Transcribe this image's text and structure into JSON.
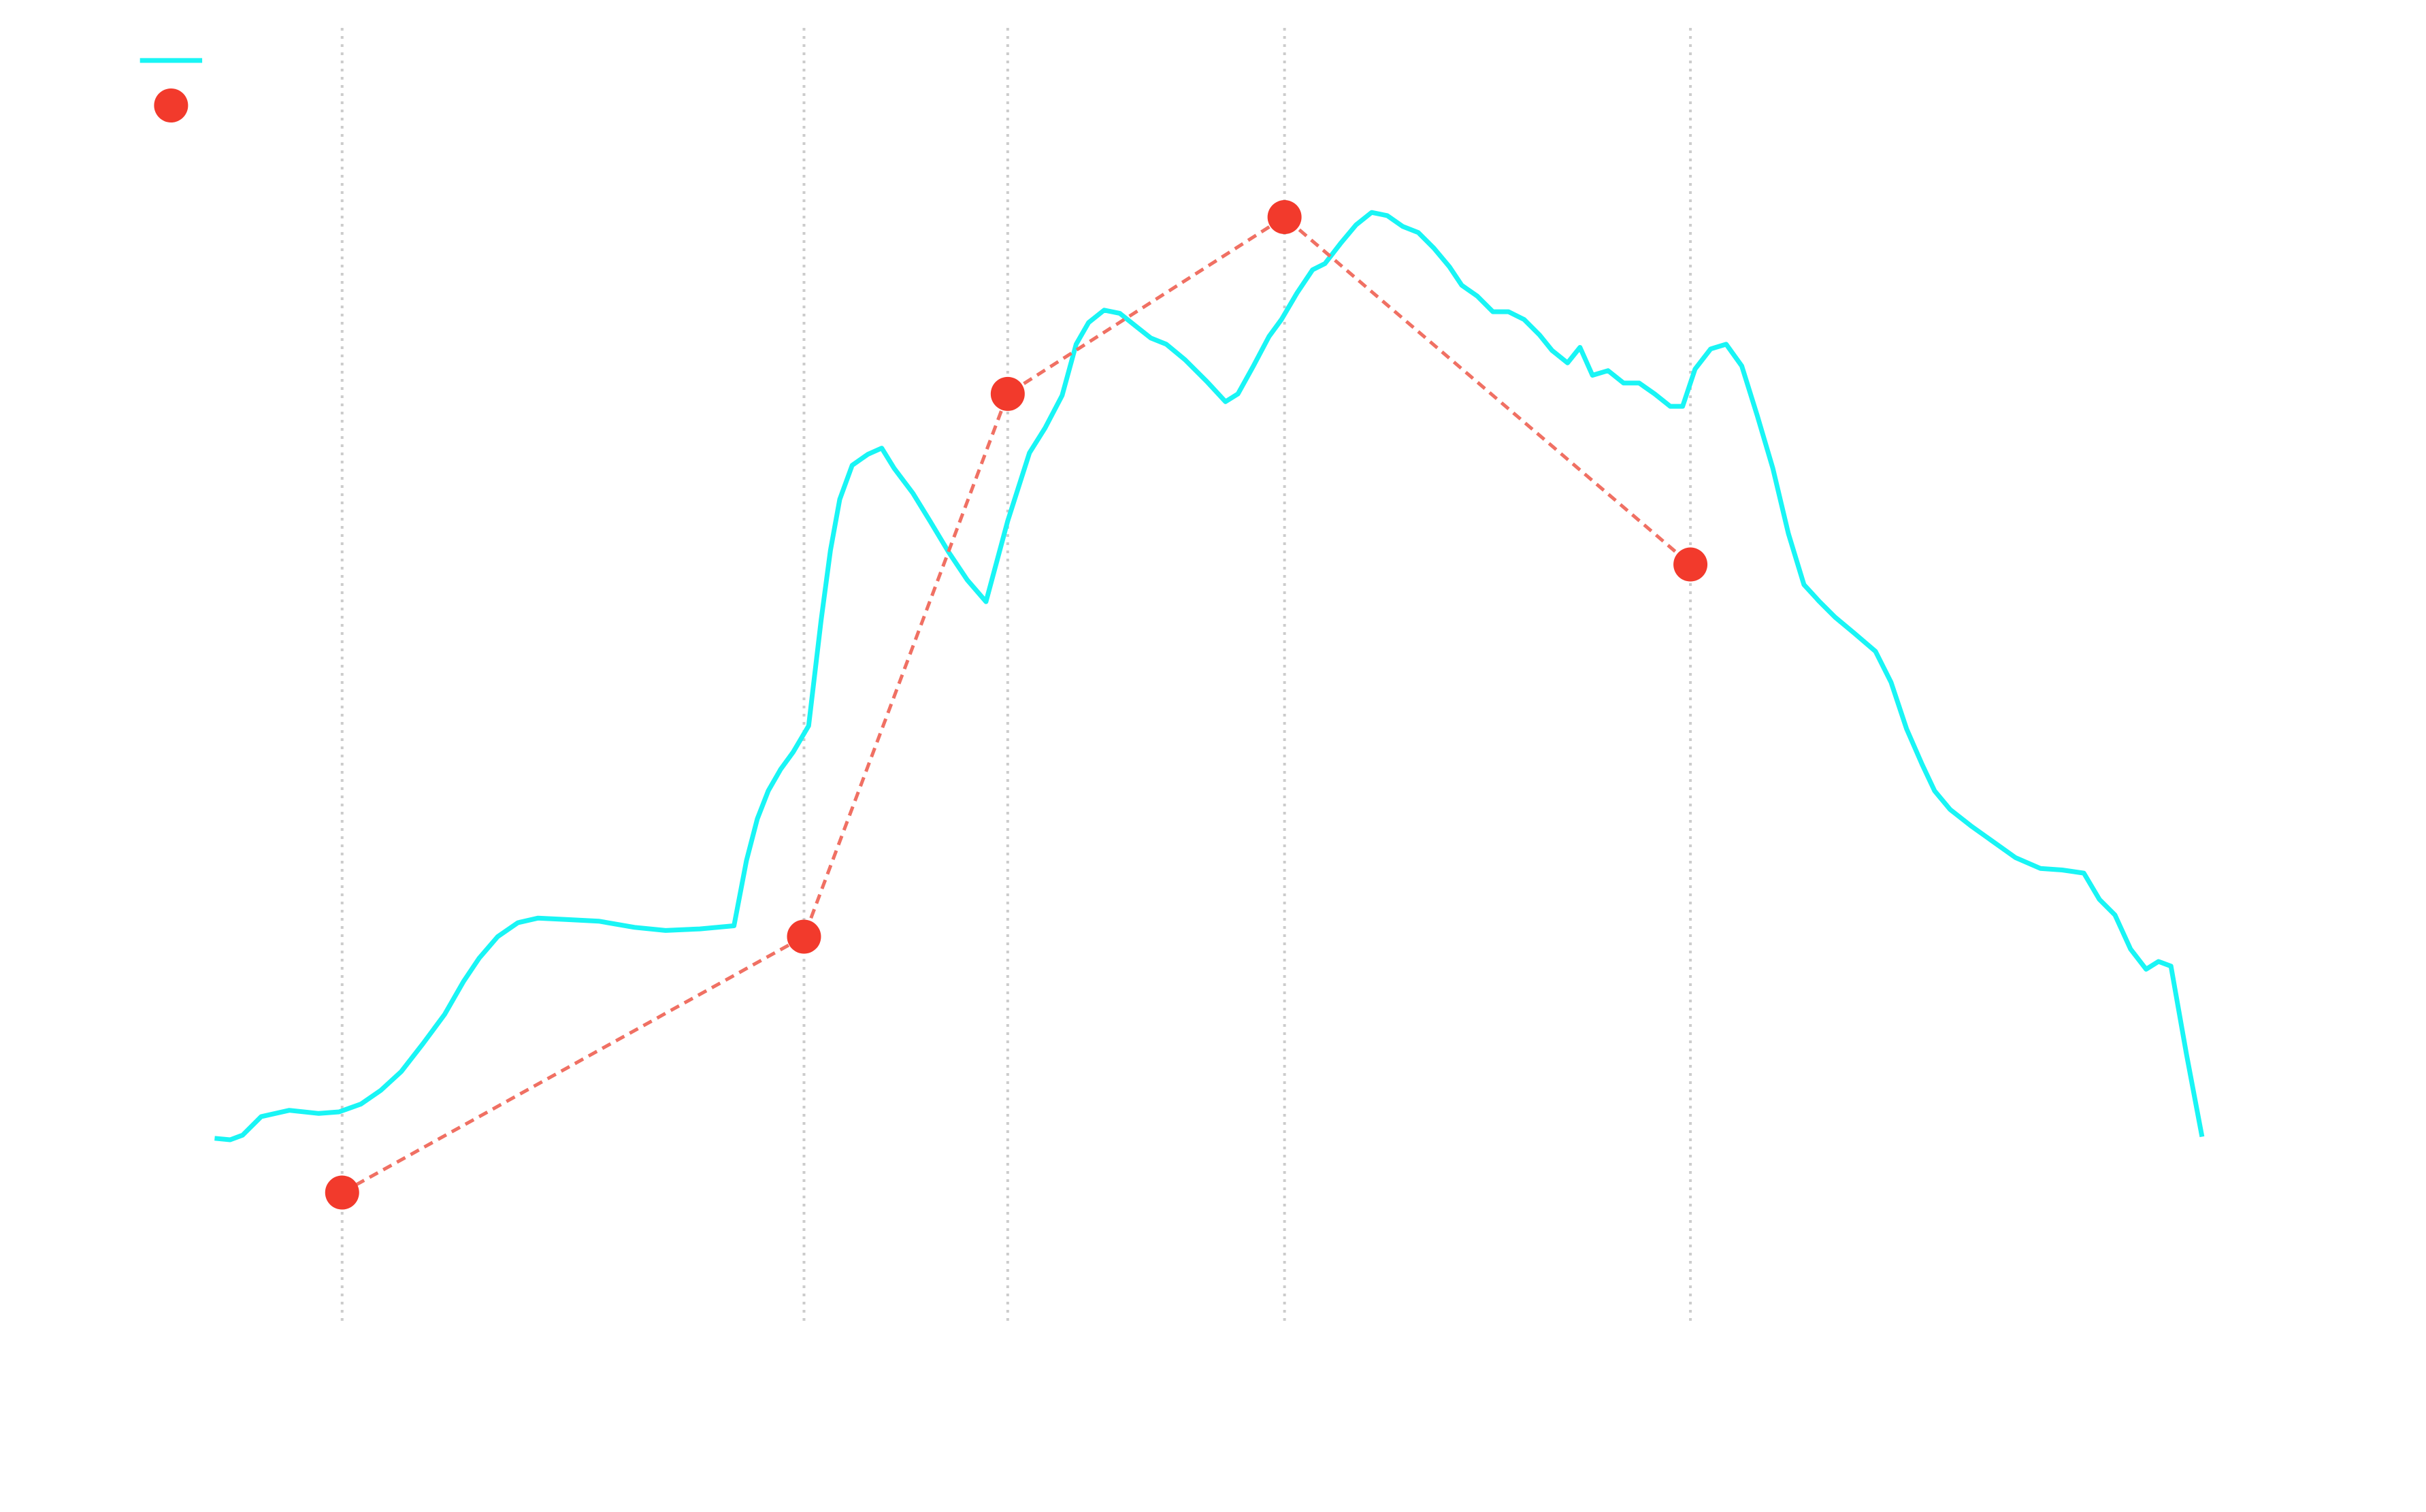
{
  "chart_data": {
    "type": "line",
    "xlim": [
      0,
      1560
    ],
    "ylim": [
      120,
      957
    ],
    "xticks": [
      220,
      517,
      648,
      826,
      1087
    ],
    "grid": true,
    "legend": "upper left",
    "series": [
      {
        "type": "line",
        "color": "#19f5f5",
        "x": [
          138,
          148,
          156,
          168,
          186,
          205,
          218,
          232,
          245,
          258,
          272,
          286,
          298,
          308,
          320,
          333,
          346,
          365,
          385,
          408,
          428,
          450,
          472,
          480,
          487,
          494,
          502,
          510,
          520,
          528,
          534,
          540,
          548,
          558,
          567,
          575,
          587,
          598,
          610,
          622,
          634,
          648,
          662,
          672,
          683,
          692,
          700,
          710,
          720,
          730,
          740,
          750,
          762,
          776,
          788,
          796,
          806,
          816,
          824,
          834,
          844,
          852,
          862,
          872,
          882,
          892,
          902,
          912,
          922,
          932,
          940,
          950,
          960,
          970,
          980,
          990,
          998,
          1008,
          1016,
          1024,
          1034,
          1044,
          1054,
          1064,
          1074,
          1082,
          1090,
          1100,
          1110,
          1120,
          1130,
          1140,
          1150,
          1160,
          1170,
          1180,
          1192,
          1206,
          1216,
          1226,
          1236,
          1244,
          1254,
          1268,
          1282,
          1296,
          1312,
          1326,
          1340,
          1350,
          1360,
          1370,
          1380,
          1388,
          1396,
          1406,
          1416
        ],
        "values": [
          241,
          240,
          243,
          255,
          259,
          257,
          258,
          263,
          272,
          284,
          302,
          321,
          342,
          357,
          371,
          380,
          383,
          382,
          381,
          377,
          375,
          376,
          378,
          420,
          447,
          465,
          479,
          490,
          507,
          575,
          620,
          653,
          675,
          682,
          686,
          673,
          657,
          639,
          619,
          601,
          587,
          639,
          683,
          699,
          720,
          753,
          767,
          775,
          773,
          765,
          757,
          753,
          743,
          729,
          716,
          721,
          739,
          758,
          769,
          786,
          801,
          805,
          818,
          830,
          838,
          836,
          829,
          825,
          815,
          803,
          791,
          784,
          774,
          774,
          769,
          759,
          749,
          741,
          751,
          733,
          736,
          728,
          728,
          721,
          713,
          713,
          737,
          750,
          753,
          739,
          707,
          673,
          631,
          598,
          587,
          577,
          567,
          555,
          535,
          505,
          482,
          465,
          453,
          442,
          432,
          422,
          415,
          414,
          412,
          395,
          385,
          363,
          350,
          355,
          352,
          295,
          242
        ]
      },
      {
        "type": "scatter",
        "color": "#f23a2c",
        "line_color": "#f07063",
        "line_style": "dashed",
        "x": [
          220,
          517,
          648,
          826,
          1087
        ],
        "values": [
          206,
          371,
          721,
          835,
          611
        ]
      }
    ]
  }
}
